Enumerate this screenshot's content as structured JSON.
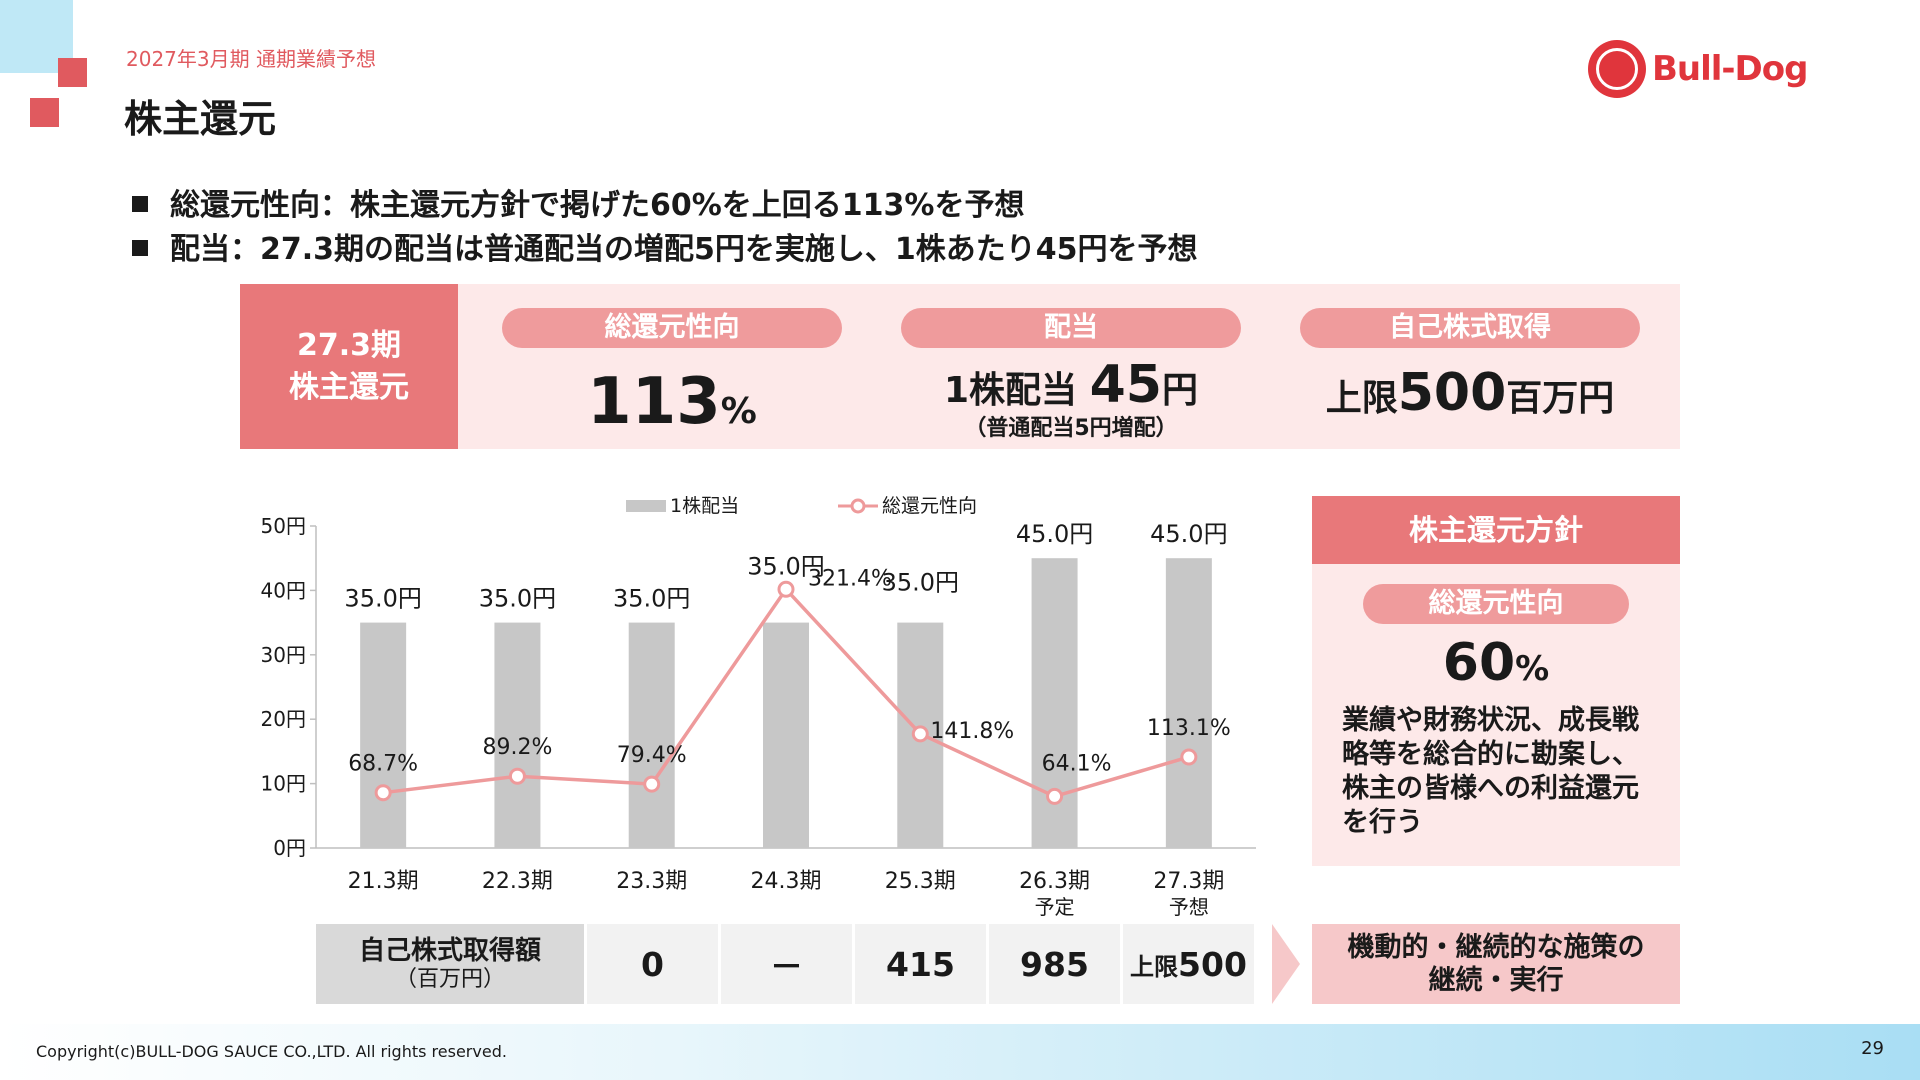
{
  "header": {
    "subtitle": "2027年3月期 通期業績予想",
    "title": "株主還元",
    "logo_text": "Bull-Dog"
  },
  "bullets": [
    "総還元性向：株主還元方針で掲げた60%を上回る113%を予想",
    "配当：27.3期の配当は普通配当の増配5円を実施し、1株あたり45円を予想"
  ],
  "summary": {
    "label_line1": "27.3期",
    "label_line2": "株主還元",
    "payout": {
      "label": "総還元性向",
      "value": "113",
      "unit": "%"
    },
    "dividend": {
      "label": "配当",
      "prefix": "1株配当 ",
      "value": "45",
      "unit": "円",
      "note": "（普通配当5円増配）"
    },
    "buyback": {
      "label": "自己株式取得",
      "prefix": "上限",
      "value": "500",
      "unit": "百万円"
    }
  },
  "chart_data": {
    "type": "bar",
    "categories": [
      "21.3期",
      "22.3期",
      "23.3期",
      "24.3期",
      "25.3期",
      "26.3期",
      "27.3期"
    ],
    "category_sublabels": [
      "",
      "",
      "",
      "",
      "",
      "予定",
      "予想"
    ],
    "series": [
      {
        "name": "1株配当",
        "type": "bar",
        "values": [
          35.0,
          35.0,
          35.0,
          35.0,
          35.0,
          45.0,
          45.0
        ],
        "labels": [
          "35.0円",
          "35.0円",
          "35.0円",
          "35.0円",
          "35.0円",
          "45.0円",
          "45.0円"
        ],
        "color": "#c7c7c7"
      },
      {
        "name": "総還元性向",
        "type": "line",
        "values": [
          68.7,
          89.2,
          79.4,
          321.4,
          141.8,
          64.1,
          113.1
        ],
        "labels": [
          "68.7%",
          "89.2%",
          "79.4%",
          "321.4%",
          "141.8%",
          "64.1%",
          "113.1%"
        ],
        "color": "#ee9a9b"
      }
    ],
    "y_ticks": [
      "0円",
      "10円",
      "20円",
      "30円",
      "40円",
      "50円"
    ],
    "ylim": [
      0,
      50
    ],
    "legend_position": "top"
  },
  "buyback_table": {
    "header_line1": "自己株式取得額",
    "header_line2": "（百万円）",
    "values": [
      {
        "prefix": "",
        "value": "0"
      },
      {
        "prefix": "",
        "value": "－"
      },
      {
        "prefix": "",
        "value": "415"
      },
      {
        "prefix": "",
        "value": "985"
      },
      {
        "prefix": "上限",
        "value": "500"
      }
    ],
    "result_line1": "機動的・継続的な施策の",
    "result_line2": "継続・実行"
  },
  "policy": {
    "header": "株主還元方針",
    "pill": "総還元性向",
    "value": "60",
    "unit": "%",
    "text": "業績や財務状況、成長戦略等を総合的に勘案し、株主の皆様への利益還元を行う"
  },
  "footer": {
    "copyright": "Copyright(c)BULL-DOG SAUCE CO.,LTD. All rights reserved.",
    "page_number": "29"
  },
  "colors": {
    "accent_red": "#e05a5f",
    "label_red": "#e8787a",
    "pill_pink": "#ef9b9c",
    "panel_pink": "#fde9e9",
    "bar_gray": "#c7c7c7",
    "line_pink": "#ee9a9b"
  }
}
